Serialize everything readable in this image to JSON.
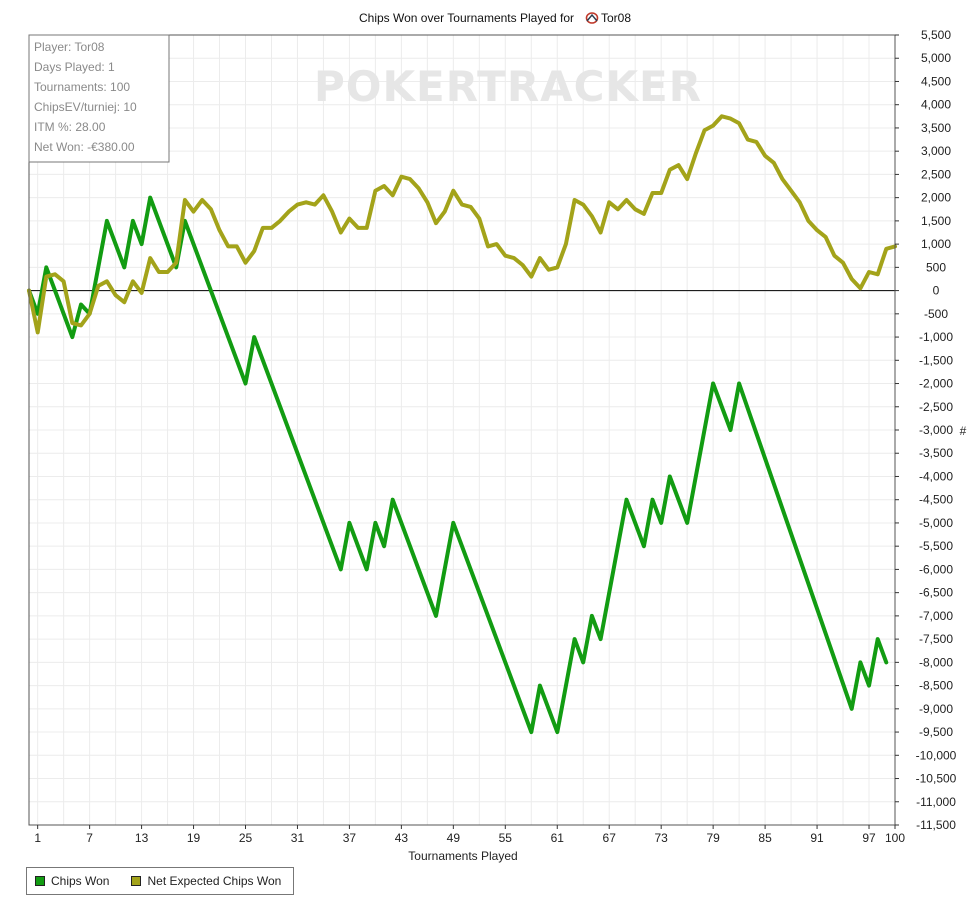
{
  "chart_data": {
    "type": "line",
    "title": "Chips Won over Tournaments Played for",
    "title_player": "Tor08",
    "xlabel": "Tournaments Played",
    "ylabel": "#",
    "xlim": [
      0,
      100
    ],
    "ylim": [
      -11500,
      5500
    ],
    "xticks": [
      1,
      7,
      13,
      19,
      25,
      31,
      37,
      43,
      49,
      55,
      61,
      67,
      73,
      79,
      85,
      91,
      97,
      100
    ],
    "yticks": [
      5500,
      5000,
      4500,
      4000,
      3500,
      3000,
      2500,
      2000,
      1500,
      1000,
      500,
      0,
      -500,
      -1000,
      -1500,
      -2000,
      -2500,
      -3000,
      -3500,
      -4000,
      -4500,
      -5000,
      -5500,
      -6000,
      -6500,
      -7000,
      -7500,
      -8000,
      -8500,
      -9000,
      -9500,
      -10000,
      -10500,
      -11000,
      -11500
    ],
    "ytick_labels": [
      "5,500",
      "5,000",
      "4,500",
      "4,000",
      "3,500",
      "3,000",
      "2,500",
      "2,000",
      "1,500",
      "1,000",
      "500",
      "0",
      "-500",
      "-1,000",
      "-1,500",
      "-2,000",
      "-2,500",
      "-3,000",
      "-3,500",
      "-4,000",
      "-4,500",
      "-5,000",
      "-5,500",
      "-6,000",
      "-6,500",
      "-7,000",
      "-7,500",
      "-8,000",
      "-8,500",
      "-9,000",
      "-9,500",
      "-10,000",
      "-10,500",
      "-11,000",
      "-11,500"
    ],
    "grid": true,
    "legend_position": "bottom-left",
    "series": [
      {
        "name": "Chips Won",
        "color": "#129c12",
        "points": [
          [
            0,
            0
          ],
          [
            1,
            -500
          ],
          [
            2,
            500
          ],
          [
            3,
            0
          ],
          [
            5,
            -1000
          ],
          [
            6,
            -300
          ],
          [
            7,
            -500
          ],
          [
            9,
            1500
          ],
          [
            11,
            500
          ],
          [
            12,
            1500
          ],
          [
            13,
            1000
          ],
          [
            14,
            2000
          ],
          [
            17,
            500
          ],
          [
            18,
            1500
          ],
          [
            25,
            -2000
          ],
          [
            26,
            -1000
          ],
          [
            36,
            -6000
          ],
          [
            37,
            -5000
          ],
          [
            39,
            -6000
          ],
          [
            40,
            -5000
          ],
          [
            41,
            -5500
          ],
          [
            42,
            -4500
          ],
          [
            47,
            -7000
          ],
          [
            49,
            -5000
          ],
          [
            58,
            -9500
          ],
          [
            59,
            -8500
          ],
          [
            61,
            -9500
          ],
          [
            63,
            -7500
          ],
          [
            64,
            -8000
          ],
          [
            65,
            -7000
          ],
          [
            66,
            -7500
          ],
          [
            69,
            -4500
          ],
          [
            71,
            -5500
          ],
          [
            72,
            -4500
          ],
          [
            73,
            -5000
          ],
          [
            74,
            -4000
          ],
          [
            76,
            -5000
          ],
          [
            79,
            -2000
          ],
          [
            81,
            -3000
          ],
          [
            82,
            -2000
          ],
          [
            95,
            -9000
          ],
          [
            96,
            -8000
          ],
          [
            97,
            -8500
          ],
          [
            98,
            -7500
          ],
          [
            99,
            -8000
          ]
        ]
      },
      {
        "name": "Net Expected Chips Won",
        "color": "#a3a31a",
        "points": [
          [
            0,
            0
          ],
          [
            1,
            -900
          ],
          [
            2,
            300
          ],
          [
            3,
            350
          ],
          [
            4,
            200
          ],
          [
            5,
            -700
          ],
          [
            6,
            -750
          ],
          [
            7,
            -500
          ],
          [
            8,
            100
          ],
          [
            9,
            200
          ],
          [
            10,
            -100
          ],
          [
            11,
            -250
          ],
          [
            12,
            200
          ],
          [
            13,
            -50
          ],
          [
            14,
            700
          ],
          [
            15,
            400
          ],
          [
            16,
            400
          ],
          [
            17,
            600
          ],
          [
            18,
            1950
          ],
          [
            19,
            1700
          ],
          [
            20,
            1950
          ],
          [
            21,
            1750
          ],
          [
            22,
            1300
          ],
          [
            23,
            950
          ],
          [
            24,
            950
          ],
          [
            25,
            600
          ],
          [
            26,
            850
          ],
          [
            27,
            1350
          ],
          [
            28,
            1350
          ],
          [
            29,
            1500
          ],
          [
            30,
            1700
          ],
          [
            31,
            1850
          ],
          [
            32,
            1900
          ],
          [
            33,
            1850
          ],
          [
            34,
            2050
          ],
          [
            35,
            1700
          ],
          [
            36,
            1250
          ],
          [
            37,
            1550
          ],
          [
            38,
            1350
          ],
          [
            39,
            1350
          ],
          [
            40,
            2150
          ],
          [
            41,
            2250
          ],
          [
            42,
            2050
          ],
          [
            43,
            2450
          ],
          [
            44,
            2400
          ],
          [
            45,
            2200
          ],
          [
            46,
            1900
          ],
          [
            47,
            1450
          ],
          [
            48,
            1700
          ],
          [
            49,
            2150
          ],
          [
            50,
            1850
          ],
          [
            51,
            1800
          ],
          [
            52,
            1550
          ],
          [
            53,
            950
          ],
          [
            54,
            1000
          ],
          [
            55,
            750
          ],
          [
            56,
            700
          ],
          [
            57,
            550
          ],
          [
            58,
            300
          ],
          [
            59,
            700
          ],
          [
            60,
            450
          ],
          [
            61,
            500
          ],
          [
            62,
            1000
          ],
          [
            63,
            1950
          ],
          [
            64,
            1850
          ],
          [
            65,
            1600
          ],
          [
            66,
            1250
          ],
          [
            67,
            1900
          ],
          [
            68,
            1750
          ],
          [
            69,
            1950
          ],
          [
            70,
            1750
          ],
          [
            71,
            1650
          ],
          [
            72,
            2100
          ],
          [
            73,
            2100
          ],
          [
            74,
            2600
          ],
          [
            75,
            2700
          ],
          [
            76,
            2400
          ],
          [
            77,
            2950
          ],
          [
            78,
            3450
          ],
          [
            79,
            3550
          ],
          [
            80,
            3750
          ],
          [
            81,
            3700
          ],
          [
            82,
            3600
          ],
          [
            83,
            3250
          ],
          [
            84,
            3200
          ],
          [
            85,
            2900
          ],
          [
            86,
            2750
          ],
          [
            87,
            2400
          ],
          [
            88,
            2150
          ],
          [
            89,
            1900
          ],
          [
            90,
            1500
          ],
          [
            91,
            1300
          ],
          [
            92,
            1150
          ],
          [
            93,
            750
          ],
          [
            94,
            600
          ],
          [
            95,
            250
          ],
          [
            96,
            50
          ],
          [
            97,
            400
          ],
          [
            98,
            350
          ],
          [
            99,
            900
          ],
          [
            100,
            950
          ]
        ]
      }
    ]
  },
  "info_box": {
    "player": "Player: Tor08",
    "days_played": "Days Played: 1",
    "tournaments": "Tournaments: 100",
    "chips_ev": "ChipsEV/turniej: 10",
    "itm": "ITM %: 28.00",
    "net_won": "Net Won: -€380.00"
  },
  "watermark": "POKERTRACKER",
  "legend": {
    "chips_won": "Chips Won",
    "net_expected": "Net Expected Chips Won"
  }
}
